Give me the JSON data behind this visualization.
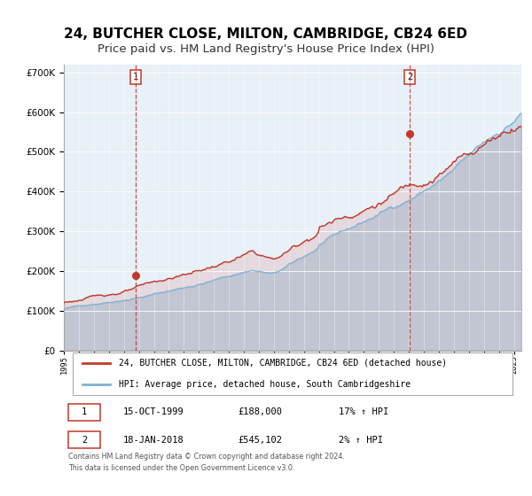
{
  "title": "24, BUTCHER CLOSE, MILTON, CAMBRIDGE, CB24 6ED",
  "subtitle": "Price paid vs. HM Land Registry's House Price Index (HPI)",
  "xlim": [
    1995.0,
    2025.5
  ],
  "ylim": [
    0,
    720000
  ],
  "yticks": [
    0,
    100000,
    200000,
    300000,
    400000,
    500000,
    600000,
    700000
  ],
  "xticks": [
    1995,
    1996,
    1997,
    1998,
    1999,
    2000,
    2001,
    2002,
    2003,
    2004,
    2005,
    2006,
    2007,
    2008,
    2009,
    2010,
    2011,
    2012,
    2013,
    2014,
    2015,
    2016,
    2017,
    2018,
    2019,
    2020,
    2021,
    2022,
    2023,
    2024,
    2025
  ],
  "bg_color": "#e8f0f8",
  "red_color": "#c0392b",
  "blue_color": "#7fb3d3",
  "marker1_x": 1999.79,
  "marker1_y": 188000,
  "marker2_x": 2018.05,
  "marker2_y": 545102,
  "vline1_x": 1999.79,
  "vline2_x": 2018.05,
  "legend_label1": "24, BUTCHER CLOSE, MILTON, CAMBRIDGE, CB24 6ED (detached house)",
  "legend_label2": "HPI: Average price, detached house, South Cambridgeshire",
  "table_row1": [
    "1",
    "15-OCT-1999",
    "£188,000",
    "17% ↑ HPI"
  ],
  "table_row2": [
    "2",
    "18-JAN-2018",
    "£545,102",
    "2% ↑ HPI"
  ],
  "footnote": "Contains HM Land Registry data © Crown copyright and database right 2024.\nThis data is licensed under the Open Government Licence v3.0.",
  "title_fontsize": 11,
  "subtitle_fontsize": 9.5
}
